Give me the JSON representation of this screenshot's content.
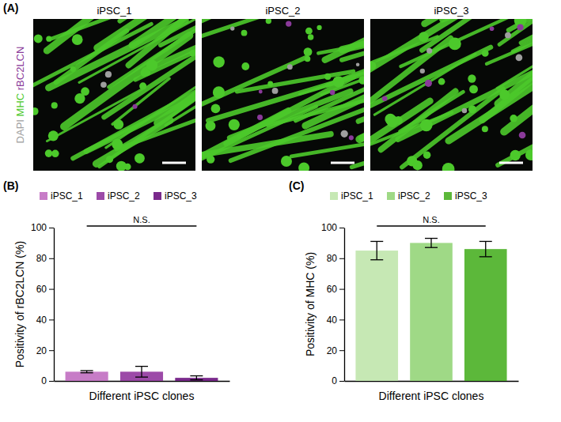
{
  "image_panel": {
    "label": "(A)",
    "images": [
      "iPSC_1",
      "iPSC_2",
      "iPSC_3"
    ],
    "stains": [
      {
        "text": "DAPI",
        "color": "#9e9e9e"
      },
      {
        "text": "MHC",
        "color": "#4cc92b"
      },
      {
        "text": "rBC2LCN",
        "color": "#8a3a9a"
      }
    ]
  },
  "chart_data": [
    {
      "type": "bar",
      "panel_label": "(B)",
      "annotation": "N.S.",
      "x_label": "Different iPSC clones",
      "y_label": "Positivity of rBC2LCN (%)",
      "categories": [
        null
      ],
      "series": [
        {
          "name": "iPSC_1",
          "color": "#c77cc7",
          "values": [
            6
          ],
          "errors": [
            0.7
          ]
        },
        {
          "name": "iPSC_2",
          "color": "#9c4aa8",
          "values": [
            6
          ],
          "errors": [
            3.5
          ]
        },
        {
          "name": "iPSC_3",
          "color": "#7a2a8c",
          "values": [
            2
          ],
          "errors": [
            1.3
          ]
        }
      ],
      "ylim": [
        0,
        100
      ],
      "yticks": [
        0,
        20,
        40,
        60,
        80,
        100
      ],
      "legend": "top",
      "tick_labels": "y"
    },
    {
      "type": "bar",
      "panel_label": "(C)",
      "annotation": "N.S.",
      "x_label": "Different iPSC clones",
      "y_label": "Positivity of MHC (%)",
      "categories": [
        null
      ],
      "series": [
        {
          "name": "iPSC_1",
          "color": "#c6e8b4",
          "values": [
            85
          ],
          "errors": [
            6
          ]
        },
        {
          "name": "iPSC_2",
          "color": "#9fd986",
          "values": [
            90
          ],
          "errors": [
            3
          ]
        },
        {
          "name": "iPSC_3",
          "color": "#5cb83a",
          "values": [
            86
          ],
          "errors": [
            5
          ]
        }
      ],
      "ylim": [
        0,
        100
      ],
      "yticks": [
        0,
        20,
        40,
        60,
        80,
        100
      ],
      "legend": "top",
      "tick_labels": "y"
    }
  ]
}
